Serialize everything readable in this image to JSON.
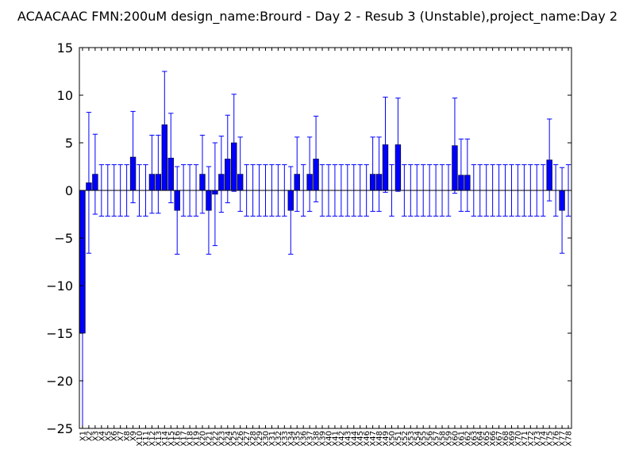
{
  "chart_data": {
    "type": "bar",
    "title": "ACAACAAC  FMN:200uM  design_name:Brourd - Day 2 - Resub 3 (Unstable),project_name:Day 2",
    "xlabel": "",
    "ylabel": "",
    "ylim": [
      -25,
      15
    ],
    "yticks": [
      -25,
      -20,
      -15,
      -10,
      -5,
      0,
      5,
      10,
      15
    ],
    "yticklabels": [
      "−25",
      "−20",
      "−15",
      "−10",
      "−5",
      "0",
      "5",
      "10",
      "15"
    ],
    "grid": false,
    "legend": "none",
    "colors": {
      "bar": "#0000ff",
      "error": "#0000ff",
      "zero_line": "#000000",
      "frame": "#000000"
    },
    "categories": [
      "X1",
      "X2",
      "X3",
      "X4",
      "X5",
      "X6",
      "X7",
      "X8",
      "X9",
      "X10",
      "X11",
      "X12",
      "X13",
      "X14",
      "X15",
      "X16",
      "X17",
      "X18",
      "X19",
      "X20",
      "X21",
      "X22",
      "X23",
      "X24",
      "X25",
      "X26",
      "X27",
      "X28",
      "X29",
      "X30",
      "X31",
      "X32",
      "X33",
      "X34",
      "X35",
      "X36",
      "X37",
      "X38",
      "X39",
      "X40",
      "X41",
      "X42",
      "X43",
      "X44",
      "X45",
      "X46",
      "X47",
      "X48",
      "X49",
      "X50",
      "X51",
      "X52",
      "X53",
      "X54",
      "X55",
      "X56",
      "X57",
      "X58",
      "X59",
      "X60",
      "X61",
      "X62",
      "X63",
      "X64",
      "X65",
      "X66",
      "X67",
      "X68",
      "X69",
      "X70",
      "X71",
      "X72",
      "X73",
      "X74",
      "X75",
      "X76",
      "X77",
      "X78"
    ],
    "values": [
      -15.0,
      0.8,
      1.7,
      0,
      0,
      0,
      0,
      0,
      3.5,
      0,
      0,
      1.7,
      1.7,
      6.9,
      3.4,
      -2.1,
      0,
      0,
      0,
      1.7,
      -2.1,
      -0.4,
      1.7,
      3.3,
      5.0,
      1.7,
      0,
      0,
      0,
      0,
      0,
      0,
      0,
      -2.1,
      1.7,
      0,
      1.7,
      3.3,
      0,
      0,
      0,
      0,
      0,
      0,
      0,
      0,
      1.7,
      1.7,
      4.8,
      0,
      4.8,
      0,
      0,
      0,
      0,
      0,
      0,
      0,
      0,
      4.7,
      1.6,
      1.6,
      0,
      0,
      0,
      0,
      0,
      0,
      0,
      0,
      0,
      0,
      0,
      0,
      3.2,
      0,
      -2.1,
      0
    ],
    "errors": [
      10.0,
      7.4,
      4.2,
      2.7,
      2.7,
      2.7,
      2.7,
      2.7,
      4.8,
      2.7,
      2.7,
      4.1,
      4.1,
      5.6,
      4.7,
      4.6,
      2.7,
      2.7,
      2.7,
      4.1,
      4.6,
      5.4,
      4.0,
      4.6,
      5.1,
      3.9,
      2.7,
      2.7,
      2.7,
      2.7,
      2.7,
      2.7,
      2.7,
      4.6,
      3.9,
      2.7,
      3.9,
      4.5,
      2.7,
      2.7,
      2.7,
      2.7,
      2.7,
      2.7,
      2.7,
      2.7,
      3.9,
      3.9,
      5.0,
      2.7,
      4.9,
      2.7,
      2.7,
      2.7,
      2.7,
      2.7,
      2.7,
      2.7,
      2.7,
      5.0,
      3.8,
      3.8,
      2.7,
      2.7,
      2.7,
      2.7,
      2.7,
      2.7,
      2.7,
      2.7,
      2.7,
      2.7,
      2.7,
      2.7,
      4.3,
      2.7,
      4.5,
      2.7
    ]
  }
}
